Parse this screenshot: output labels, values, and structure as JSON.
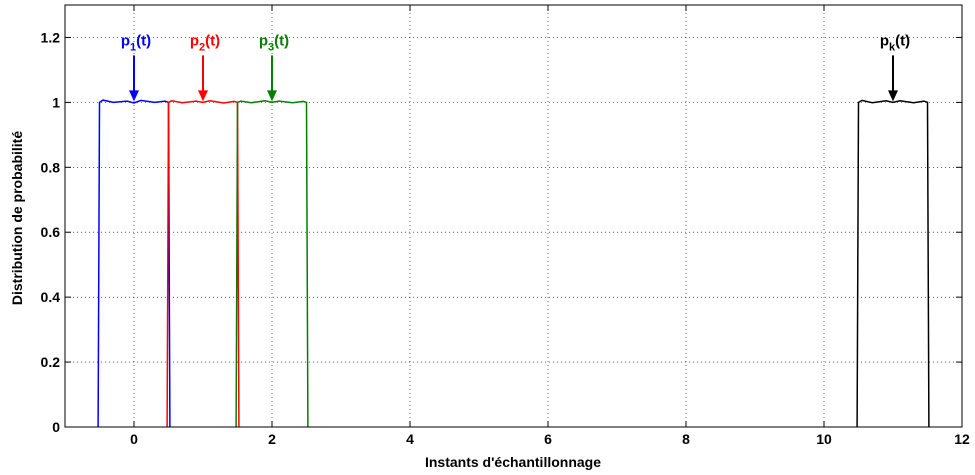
{
  "chart_data": {
    "type": "line",
    "title": "",
    "xlabel": "Instants d'échantillonnage",
    "ylabel": "Distribution de probabilité",
    "xlim": [
      -1,
      12
    ],
    "ylim": [
      0,
      1.3
    ],
    "xticks": [
      0,
      2,
      4,
      6,
      8,
      10,
      12
    ],
    "xtick_labels": [
      "0",
      "2",
      "4",
      "6",
      "8",
      "10",
      "12"
    ],
    "yticks": [
      0,
      0.2,
      0.4,
      0.6,
      0.8,
      1,
      1.2
    ],
    "ytick_labels": [
      "0",
      "0.2",
      "0.4",
      "0.6",
      "0.8",
      "1",
      "1.2"
    ],
    "grid": true,
    "grid_style": "dotted",
    "legend": "none",
    "series": [
      {
        "color": "#0000ff",
        "x": [
          -0.52,
          -0.5,
          -0.45,
          -0.3,
          -0.1,
          0.0,
          0.1,
          0.3,
          0.45,
          0.5,
          0.52
        ],
        "y": [
          0,
          1.0,
          1.007,
          1.0,
          1.004,
          0.998,
          1.006,
          1.0,
          1.004,
          1.0,
          0
        ]
      },
      {
        "color": "#ff0000",
        "x": [
          0.48,
          0.5,
          0.55,
          0.7,
          0.9,
          1.0,
          1.1,
          1.3,
          1.45,
          1.5,
          1.52
        ],
        "y": [
          0,
          1.0,
          1.005,
          0.999,
          1.004,
          1.0,
          1.005,
          0.998,
          1.003,
          1.0,
          0
        ]
      },
      {
        "color": "#008000",
        "x": [
          1.48,
          1.5,
          1.55,
          1.7,
          1.9,
          2.0,
          2.1,
          2.3,
          2.45,
          2.5,
          2.52
        ],
        "y": [
          0,
          1.0,
          1.004,
          0.999,
          1.005,
          1.0,
          1.004,
          0.999,
          1.003,
          1.0,
          0
        ]
      },
      {
        "color": "#000000",
        "x": [
          10.48,
          10.5,
          10.55,
          10.7,
          10.9,
          11.0,
          11.1,
          11.3,
          11.45,
          11.5,
          11.52
        ],
        "y": [
          0,
          1.0,
          1.006,
          0.999,
          1.005,
          1.0,
          1.005,
          0.999,
          1.004,
          1.0,
          0
        ]
      }
    ],
    "annotations": [
      {
        "base": "p",
        "sub": "1",
        "suffix": "(t)",
        "color": "#0000ff",
        "x": 0,
        "y": 1.0
      },
      {
        "base": "p",
        "sub": "2",
        "suffix": "(t)",
        "color": "#ff0000",
        "x": 1,
        "y": 1.0
      },
      {
        "base": "p",
        "sub": "3",
        "suffix": "(t)",
        "color": "#008000",
        "x": 2,
        "y": 1.0
      },
      {
        "base": "p",
        "sub": "k",
        "suffix": "(t)",
        "color": "#000000",
        "x": 11,
        "y": 1.0
      }
    ]
  }
}
